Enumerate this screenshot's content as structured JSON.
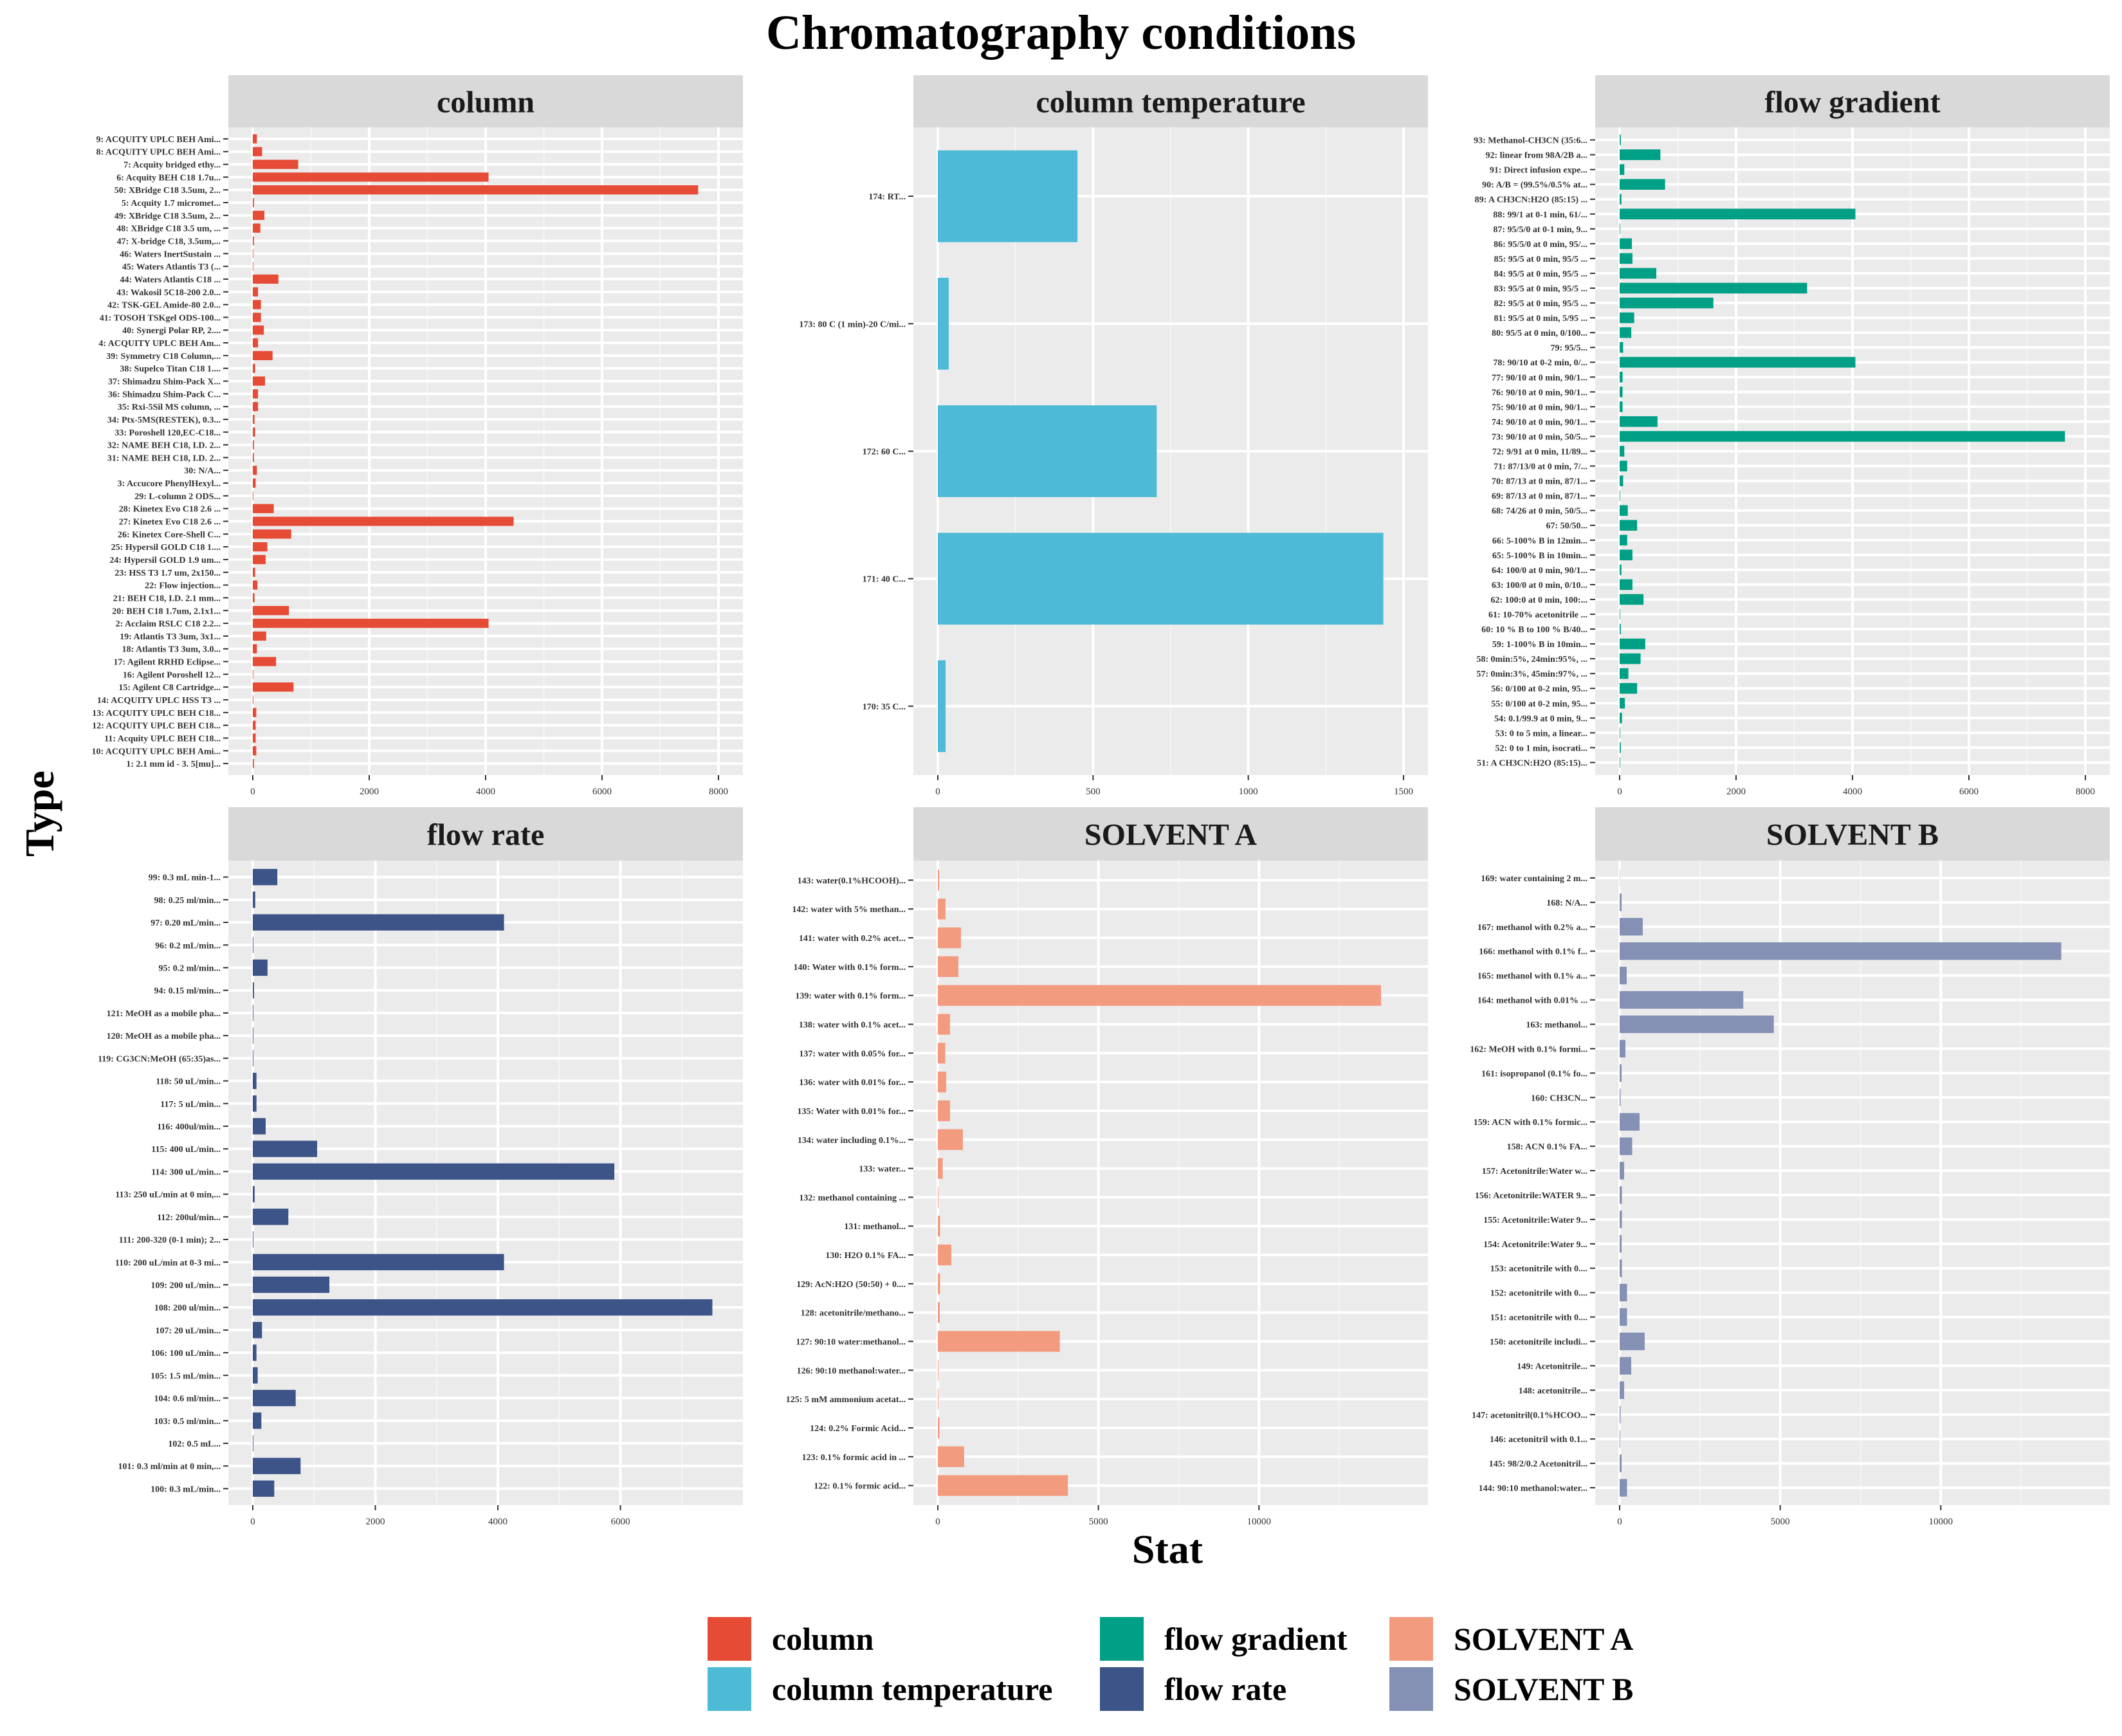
{
  "chart_data": {
    "type": "bar",
    "orientation": "horizontal",
    "title": "Chromatography conditions",
    "xlabel": "Stat",
    "ylabel": "Type",
    "grid": true,
    "legend_position": "bottom",
    "legend": [
      {
        "label": "column",
        "color": "#E64B35"
      },
      {
        "label": "column temperature",
        "color": "#4DBBD5"
      },
      {
        "label": "flow gradient",
        "color": "#00A087"
      },
      {
        "label": "flow rate",
        "color": "#3C5488"
      },
      {
        "label": "SOLVENT A",
        "color": "#F39B7F"
      },
      {
        "label": "SOLVENT B",
        "color": "#8491B4"
      }
    ],
    "facets": [
      {
        "name": "column",
        "color": "#E64B35",
        "xlim": [
          0,
          8000
        ],
        "ticks": [
          0,
          2000,
          4000,
          6000,
          8000
        ],
        "categories": [
          "9: ACQUITY UPLC BEH Ami...",
          "8: ACQUITY UPLC BEH Ami...",
          "7: Acquity bridged ethy...",
          "6: Acquity BEH C18 1.7u...",
          "50: XBridge C18 3.5um, 2...",
          "5: Acquity 1.7 micromet...",
          "49: XBridge C18 3.5um, 2...",
          "48: XBridge C18 3.5 um, ...",
          "47: X-bridge C18, 3.5um,...",
          "46: Waters InertSustain ...",
          "45: Waters Atlantis T3 (...",
          "44: Waters Atlantis C18 ...",
          "43: Wakosil 5C18-200 2.0...",
          "42: TSK-GEL Amide-80 2.0...",
          "41: TOSOH TSKgel ODS-100...",
          "40: Synergi Polar RP, 2....",
          "4: ACQUITY UPLC BEH Am...",
          "39: Symmetry C18 Column,...",
          "38: Supelco Titan C18 1....",
          "37: Shimadzu Shim-Pack X...",
          "36: Shimadzu Shim-Pack C...",
          "35: Rxi-5Sil MS column, ...",
          "34: Ptx-5MS(RESTEK), 0.3...",
          "33: Poroshell 120,EC-C18...",
          "32: NAME BEH C18, I.D. 2...",
          "31: NAME BEH C18, I.D. 2...",
          "30: N/A...",
          "3: Accucore PhenylHexyl...",
          "29: L-column 2 ODS...",
          "28: Kinetex Evo C18 2.6 ...",
          "27: Kinetex Evo C18 2.6 ...",
          "26: Kinetex Core-Shell C...",
          "25: Hypersil GOLD C18 1....",
          "24: Hypersil GOLD 1.9 um...",
          "23: HSS T3 1.7 um, 2x150...",
          "22: Flow injection...",
          "21: BEH C18, I.D. 2.1 mm...",
          "20: BEH C18 1.7um, 2.1x1...",
          "2: Acclaim RSLC C18 2.2...",
          "19: Atlantis T3 3um, 3x1...",
          "18: Atlantis T3 3um, 3.0...",
          "17: Agilent RRHD Eclipse...",
          "16: Agilent Poroshell 12...",
          "15: Agilent C8 Cartridge...",
          "14: ACQUITY UPLC HSS T3 ...",
          "13: ACQUITY UPLC BEH C18...",
          "12: ACQUITY UPLC BEH C18...",
          "11: Acquity UPLC BEH C18...",
          "10: ACQUITY UPLC BEH Ami...",
          "1: 2.1 mm id - 3. 5[mu]..."
        ],
        "values": [
          70,
          160,
          780,
          4050,
          7650,
          20,
          200,
          130,
          20,
          10,
          10,
          440,
          90,
          140,
          140,
          190,
          90,
          340,
          40,
          210,
          90,
          90,
          30,
          40,
          20,
          20,
          70,
          50,
          10,
          360,
          4480,
          660,
          250,
          220,
          40,
          80,
          30,
          620,
          4050,
          230,
          70,
          400,
          10,
          700,
          10,
          60,
          50,
          50,
          60,
          20
        ]
      },
      {
        "name": "column temperature",
        "color": "#4DBBD5",
        "xlim": [
          0,
          1500
        ],
        "ticks": [
          0,
          500,
          1000,
          1500
        ],
        "categories": [
          "174: RT...",
          "173: 80 C (1 min)-20 C/mi...",
          "172: 60 C...",
          "171: 40 C...",
          "170: 35 C..."
        ],
        "values": [
          450,
          35,
          705,
          1435,
          25
        ]
      },
      {
        "name": "flow gradient",
        "color": "#00A087",
        "xlim": [
          0,
          8000
        ],
        "ticks": [
          0,
          2000,
          4000,
          6000,
          8000
        ],
        "categories": [
          "93: Methanol-CH3CN (35:6...",
          "92: linear from 98A/2B a...",
          "91: Direct infusion expe...",
          "90: A/B = (99.5%/0.5% at...",
          "89: A CH3CN:H2O (85:15) ...",
          "88: 99/1 at 0-1 min, 61/...",
          "87: 95/5/0 at 0-1 min, 9...",
          "86: 95/5/0 at 0 min, 95/...",
          "85: 95/5 at 0 min, 95/5 ...",
          "84: 95/5 at 0 min, 95/5 ...",
          "83: 95/5 at 0 min, 95/5 ...",
          "82: 95/5 at 0 min, 95/5 ...",
          "81: 95/5 at 0 min, 5/95 ...",
          "80: 95/5 at 0 min, 0/100...",
          "79: 95/5...",
          "78: 90/10 at 0-2 min, 0/...",
          "77: 90/10 at 0 min, 90/1...",
          "76: 90/10 at 0 min, 90/1...",
          "75: 90/10 at 0 min, 90/1...",
          "74: 90/10 at 0 min, 90/1...",
          "73: 90/10 at 0 min, 50/5...",
          "72: 9/91 at 0 min, 11/89...",
          "71: 87/13/0 at 0 min, 7/...",
          "70: 87/13 at 0 min, 87/1...",
          "69: 87/13 at 0 min, 87/1...",
          "68: 74/26 at 0 min, 50/5...",
          "67: 50/50...",
          "66: 5-100% B in 12min...",
          "65: 5-100% B in 10min...",
          "64: 100/0 at 0 min, 90/1...",
          "63: 100/0 at 0 min, 0/10...",
          "62: 100:0 at 0 min, 100:...",
          "61: 10-70% acetonitrile ...",
          "60: 10 % B to 100 % B/40...",
          "59: 1-100% B in 10min...",
          "58: 0min:5%, 24min:95%, ...",
          "57: 0min:3%, 45min:97%, ...",
          "56: 0/100 at 0-2 min, 95...",
          "55: 0/100 at 0-2 min, 95...",
          "54: 0.1/99.9 at 0 min, 9...",
          "53: 0 to 5 min, a linear...",
          "52: 0 to 1 min, isocrati...",
          "51: A CH3CN:H2O (85:15)..."
        ],
        "values": [
          20,
          700,
          80,
          780,
          30,
          4050,
          10,
          210,
          220,
          630,
          3220,
          1610,
          250,
          200,
          60,
          4050,
          50,
          50,
          50,
          650,
          7650,
          80,
          130,
          60,
          10,
          140,
          300,
          130,
          220,
          30,
          220,
          410,
          10,
          20,
          440,
          360,
          150,
          300,
          90,
          40,
          10,
          20,
          10
        ]
      },
      {
        "name": "flow rate",
        "color": "#3C5488",
        "xlim": [
          0,
          7600
        ],
        "ticks": [
          0,
          2000,
          4000,
          6000
        ],
        "categories": [
          "99: 0.3 mL min-1...",
          "98: 0.25 ml/min...",
          "97: 0.20 mL/min...",
          "96: 0.2 mL/min...",
          "95: 0.2 ml/min...",
          "94: 0.15 ml/min...",
          "121: MeOH as a mobile pha...",
          "120: MeOH as a mobile pha...",
          "119: CG3CN:MeOH (65:35)as...",
          "118: 50 uL/min...",
          "117: 5 uL/min...",
          "116: 400ul/min...",
          "115: 400 uL/min...",
          "114: 300 uL/min...",
          "113: 250 uL/min at 0 min,...",
          "112: 200ul/min...",
          "111: 200-320 (0-1 min); 2...",
          "110: 200 uL/min at 0-3 mi...",
          "109: 200 uL/min...",
          "108: 200 ul/min...",
          "107: 20 uL/min...",
          "106: 100 uL/min...",
          "105: 1.5 mL/min...",
          "104: 0.6 ml/min...",
          "103: 0.5 ml/min...",
          "102: 0.5 mL...",
          "101: 0.3 ml/min at 0 min,...",
          "100: 0.3 mL/min..."
        ],
        "values": [
          400,
          40,
          4100,
          10,
          240,
          20,
          10,
          10,
          10,
          60,
          60,
          210,
          1050,
          5900,
          30,
          580,
          10,
          4100,
          1250,
          7500,
          150,
          60,
          80,
          700,
          140,
          10,
          780,
          350
        ]
      },
      {
        "name": "SOLVENT A",
        "color": "#F39B7F",
        "xlim": [
          0,
          14500
        ],
        "ticks": [
          0,
          5000,
          10000
        ],
        "categories": [
          "143: water(0.1%HCOOH)...",
          "142: water with 5% methan...",
          "141: water with 0.2% acet...",
          "140: Water with 0.1% form...",
          "139: water with 0.1% form...",
          "138: water with 0.1% acet...",
          "137: water with 0.05% for...",
          "136: water with 0.01% for...",
          "135: Water with 0.01% for...",
          "134: water including 0.1%...",
          "133: water...",
          "132: methanol containing ...",
          "131: methanol...",
          "130: H2O 0.1% FA...",
          "129: AcN:H2O (50:50) + 0....",
          "128: acetonitrile/methano...",
          "127: 90:10 water:methanol...",
          "126: 90:10 methanol:water...",
          "125: 5 mM ammonium acetat...",
          "124: 0.2% Formic Acid...",
          "123: 0.1% formic acid in ...",
          "122: 0.1% formic acid..."
        ],
        "values": [
          40,
          240,
          720,
          640,
          13800,
          380,
          230,
          260,
          380,
          780,
          150,
          20,
          70,
          420,
          70,
          60,
          3800,
          20,
          20,
          50,
          820,
          4050
        ]
      },
      {
        "name": "SOLVENT B",
        "color": "#8491B4",
        "xlim": [
          0,
          14500
        ],
        "ticks": [
          0,
          5000,
          10000
        ],
        "categories": [
          "169: water containing 2 m...",
          "168: N/A...",
          "167: methanol with 0.2% a...",
          "166: methanol with 0.1% f...",
          "165: methanol with 0.1% a...",
          "164: methanol with 0.01% ...",
          "163: methanol...",
          "162: MeOH with 0.1% formi...",
          "161: isopropanol (0.1% fo...",
          "160: CH3CN...",
          "159: ACN with 0.1% formic...",
          "158: ACN 0.1% FA...",
          "157: Acetonitrile:Water w...",
          "156: Acetonitrile:WATER 9...",
          "155: Acetonitrile:Water 9...",
          "154: Acetonitrile:Water 9...",
          "153: acetonitrile with 0....",
          "152: acetonitrile with 0....",
          "151: acetonitrile with 0....",
          "150: acetonitrile includi...",
          "149: Acetonitrile...",
          "148: acetonitrile...",
          "147: acetonitril(0.1%HCOO...",
          "146: acetonitril with 0.1...",
          "145: 98/2/0.2 Acetonitril...",
          "144: 90:10 methanol:water..."
        ],
        "values": [
          10,
          60,
          720,
          13750,
          220,
          3850,
          4800,
          180,
          60,
          30,
          620,
          390,
          140,
          70,
          70,
          60,
          70,
          230,
          230,
          780,
          360,
          140,
          30,
          20,
          60,
          230
        ]
      }
    ]
  }
}
